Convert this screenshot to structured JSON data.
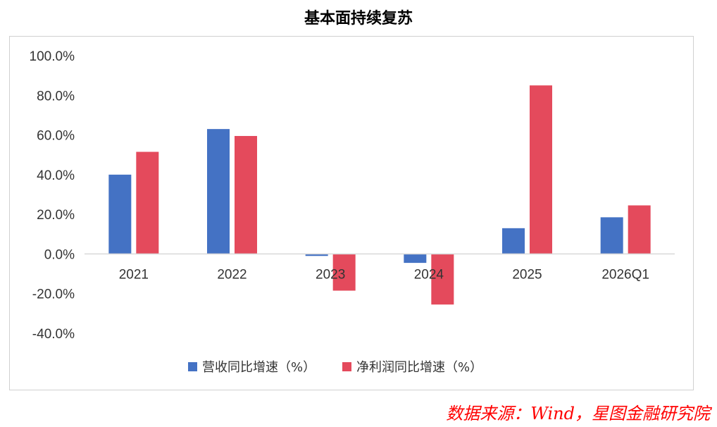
{
  "chart_data": {
    "type": "bar",
    "title": "基本面持续复苏",
    "categories": [
      "2021",
      "2022",
      "2023",
      "2024",
      "2025",
      "2026Q1"
    ],
    "series": [
      {
        "name": "营收同比增速（%）",
        "color": "#4472c4",
        "values": [
          40.0,
          63.0,
          -1.0,
          -4.5,
          13.0,
          18.5
        ]
      },
      {
        "name": "净利润同比增速（%）",
        "color": "#e44a5c",
        "values": [
          51.5,
          59.5,
          -18.5,
          -25.5,
          85.0,
          24.5
        ]
      }
    ],
    "ylim": [
      -40,
      100
    ],
    "yticks": [
      "100.0%",
      "80.0%",
      "60.0%",
      "40.0%",
      "20.0%",
      "0.0%",
      "-20.0%",
      "-40.0%"
    ],
    "ytick_values": [
      100,
      80,
      60,
      40,
      20,
      0,
      -20,
      -40
    ],
    "legend_position": "bottom",
    "grid": false
  },
  "source": "数据来源：Wind，星图金融研究院"
}
